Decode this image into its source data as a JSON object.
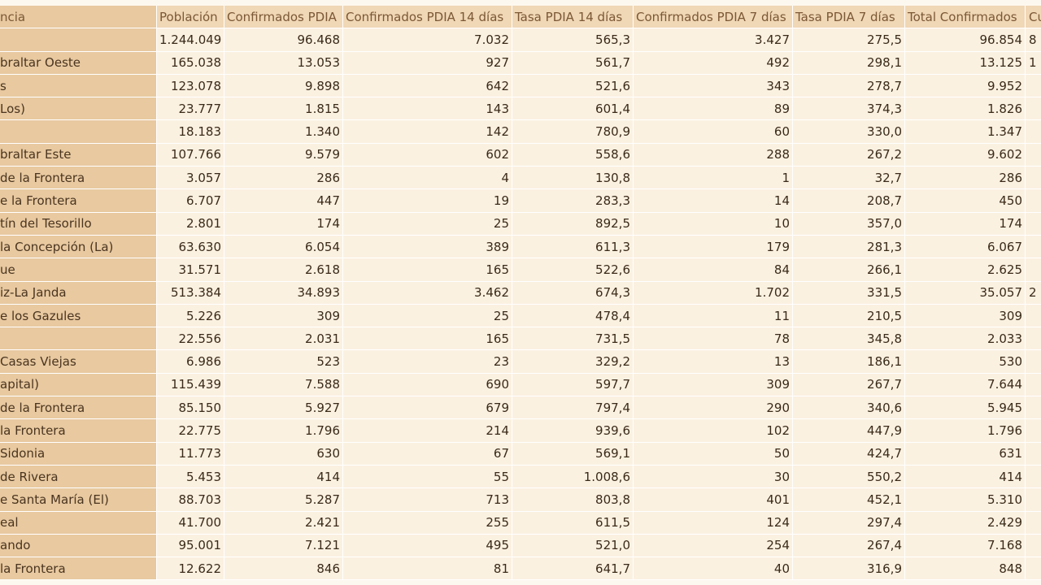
{
  "table": {
    "headers": [
      "ncia",
      "Población",
      "Confirmados PDIA",
      "Confirmados PDIA 14 días",
      "Tasa PDIA 14 días",
      "Confirmados PDIA 7 días",
      "Tasa PDIA 7 días",
      "Total Confirmados",
      "Cu"
    ],
    "rows": [
      [
        "",
        "1.244.049",
        "96.468",
        "7.032",
        "565,3",
        "3.427",
        "275,5",
        "96.854",
        "8"
      ],
      [
        "braltar Oeste",
        "165.038",
        "13.053",
        "927",
        "561,7",
        "492",
        "298,1",
        "13.125",
        "1"
      ],
      [
        "s",
        "123.078",
        "9.898",
        "642",
        "521,6",
        "343",
        "278,7",
        "9.952",
        ""
      ],
      [
        "Los)",
        "23.777",
        "1.815",
        "143",
        "601,4",
        "89",
        "374,3",
        "1.826",
        ""
      ],
      [
        "",
        "18.183",
        "1.340",
        "142",
        "780,9",
        "60",
        "330,0",
        "1.347",
        ""
      ],
      [
        "braltar Este",
        "107.766",
        "9.579",
        "602",
        "558,6",
        "288",
        "267,2",
        "9.602",
        ""
      ],
      [
        "de la Frontera",
        "3.057",
        "286",
        "4",
        "130,8",
        "1",
        "32,7",
        "286",
        ""
      ],
      [
        "e la Frontera",
        "6.707",
        "447",
        "19",
        "283,3",
        "14",
        "208,7",
        "450",
        ""
      ],
      [
        "tín del Tesorillo",
        "2.801",
        "174",
        "25",
        "892,5",
        "10",
        "357,0",
        "174",
        ""
      ],
      [
        "la Concepción (La)",
        "63.630",
        "6.054",
        "389",
        "611,3",
        "179",
        "281,3",
        "6.067",
        ""
      ],
      [
        "ue",
        "31.571",
        "2.618",
        "165",
        "522,6",
        "84",
        "266,1",
        "2.625",
        ""
      ],
      [
        "iz-La Janda",
        "513.384",
        "34.893",
        "3.462",
        "674,3",
        "1.702",
        "331,5",
        "35.057",
        "2"
      ],
      [
        "e los Gazules",
        "5.226",
        "309",
        "25",
        "478,4",
        "11",
        "210,5",
        "309",
        ""
      ],
      [
        "",
        "22.556",
        "2.031",
        "165",
        "731,5",
        "78",
        "345,8",
        "2.033",
        ""
      ],
      [
        "Casas Viejas",
        "6.986",
        "523",
        "23",
        "329,2",
        "13",
        "186,1",
        "530",
        ""
      ],
      [
        "apital)",
        "115.439",
        "7.588",
        "690",
        "597,7",
        "309",
        "267,7",
        "7.644",
        ""
      ],
      [
        "de la Frontera",
        "85.150",
        "5.927",
        "679",
        "797,4",
        "290",
        "340,6",
        "5.945",
        ""
      ],
      [
        "la Frontera",
        "22.775",
        "1.796",
        "214",
        "939,6",
        "102",
        "447,9",
        "1.796",
        ""
      ],
      [
        "Sidonia",
        "11.773",
        "630",
        "67",
        "569,1",
        "50",
        "424,7",
        "631",
        ""
      ],
      [
        "de Rivera",
        "5.453",
        "414",
        "55",
        "1.008,6",
        "30",
        "550,2",
        "414",
        ""
      ],
      [
        "e Santa María (El)",
        "88.703",
        "5.287",
        "713",
        "803,8",
        "401",
        "452,1",
        "5.310",
        ""
      ],
      [
        "eal",
        "41.700",
        "2.421",
        "255",
        "611,5",
        "124",
        "297,4",
        "2.429",
        ""
      ],
      [
        "ando",
        "95.001",
        "7.121",
        "495",
        "521,0",
        "254",
        "267,4",
        "7.168",
        ""
      ],
      [
        "la Frontera",
        "12.622",
        "846",
        "81",
        "641,7",
        "40",
        "316,9",
        "848",
        ""
      ]
    ]
  }
}
